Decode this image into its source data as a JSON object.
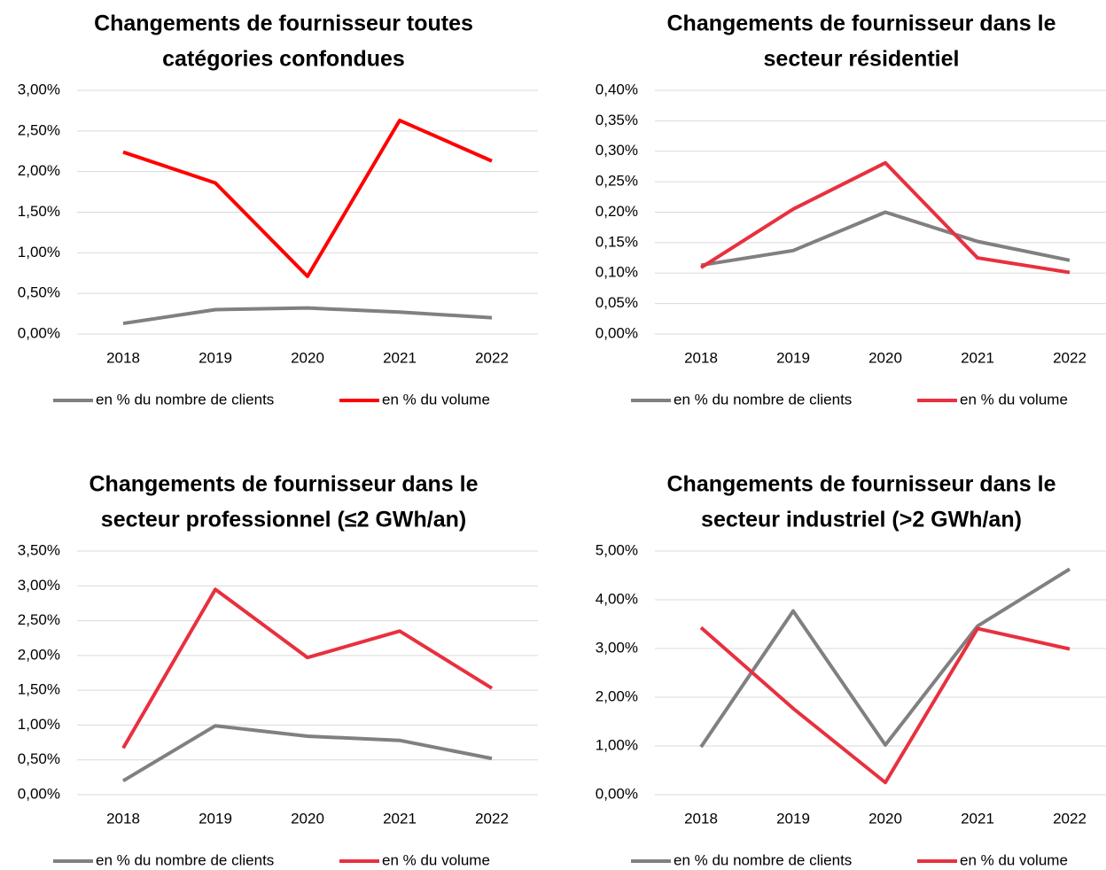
{
  "chart_data": [
    {
      "type": "line",
      "title": [
        "Changements de fournisseur toutes",
        "catégories confondues"
      ],
      "categories": [
        "2018",
        "2019",
        "2020",
        "2021",
        "2022"
      ],
      "series": [
        {
          "name": "en % du nombre de clients",
          "color": "#808080",
          "values": [
            0.13,
            0.3,
            0.32,
            0.27,
            0.2
          ]
        },
        {
          "name": "en % du volume",
          "color": "#ff0000",
          "values": [
            2.24,
            1.86,
            0.71,
            2.63,
            2.13
          ]
        }
      ],
      "ylim": [
        0,
        3
      ],
      "yticks": [
        {
          "value": 0,
          "label": "0,00%"
        },
        {
          "value": 0.5,
          "label": "0,50%"
        },
        {
          "value": 1,
          "label": "1,00%"
        },
        {
          "value": 1.5,
          "label": "1,50%"
        },
        {
          "value": 2,
          "label": "2,00%"
        },
        {
          "value": 2.5,
          "label": "2,50%"
        },
        {
          "value": 3,
          "label": "3,00%"
        }
      ],
      "grid": true,
      "legend": "bottom"
    },
    {
      "type": "line",
      "title": [
        "Changements de fournisseur dans le",
        "secteur résidentiel"
      ],
      "categories": [
        "2018",
        "2019",
        "2020",
        "2021",
        "2022"
      ],
      "series": [
        {
          "name": "en % du nombre de clients",
          "color": "#808080",
          "values": [
            0.113,
            0.137,
            0.2,
            0.152,
            0.121
          ]
        },
        {
          "name": "en % du volume",
          "color": "#e8303f",
          "values": [
            0.109,
            0.205,
            0.281,
            0.125,
            0.101
          ]
        }
      ],
      "ylim": [
        0,
        0.4
      ],
      "yticks": [
        {
          "value": 0,
          "label": "0,00%"
        },
        {
          "value": 0.05,
          "label": "0,05%"
        },
        {
          "value": 0.1,
          "label": "0,10%"
        },
        {
          "value": 0.15,
          "label": "0,15%"
        },
        {
          "value": 0.2,
          "label": "0,20%"
        },
        {
          "value": 0.25,
          "label": "0,25%"
        },
        {
          "value": 0.3,
          "label": "0,30%"
        },
        {
          "value": 0.35,
          "label": "0,35%"
        },
        {
          "value": 0.4,
          "label": "0,40%"
        }
      ],
      "grid": true,
      "legend": "bottom"
    },
    {
      "type": "line",
      "title": [
        "Changements de fournisseur dans le",
        "secteur professionnel (≤2 GWh/an)"
      ],
      "categories": [
        "2018",
        "2019",
        "2020",
        "2021",
        "2022"
      ],
      "series": [
        {
          "name": "en % du nombre de clients",
          "color": "#808080",
          "values": [
            0.2,
            0.99,
            0.84,
            0.78,
            0.52
          ]
        },
        {
          "name": "en % du volume",
          "color": "#e8303f",
          "values": [
            0.67,
            2.95,
            1.97,
            2.35,
            1.53
          ]
        }
      ],
      "ylim": [
        0,
        3.5
      ],
      "yticks": [
        {
          "value": 0,
          "label": "0,00%"
        },
        {
          "value": 0.5,
          "label": "0,50%"
        },
        {
          "value": 1,
          "label": "1,00%"
        },
        {
          "value": 1.5,
          "label": "1,50%"
        },
        {
          "value": 2,
          "label": "2,00%"
        },
        {
          "value": 2.5,
          "label": "2,50%"
        },
        {
          "value": 3,
          "label": "3,00%"
        },
        {
          "value": 3.5,
          "label": "3,50%"
        }
      ],
      "grid": true,
      "legend": "bottom"
    },
    {
      "type": "line",
      "title": [
        "Changements de fournisseur dans le",
        "secteur industriel (>2 GWh/an)"
      ],
      "categories": [
        "2018",
        "2019",
        "2020",
        "2021",
        "2022"
      ],
      "series": [
        {
          "name": "en % du nombre de clients",
          "color": "#808080",
          "values": [
            0.98,
            3.77,
            1.02,
            3.46,
            4.63
          ]
        },
        {
          "name": "en % du volume",
          "color": "#e8303f",
          "values": [
            3.43,
            1.77,
            0.25,
            3.41,
            2.99
          ]
        }
      ],
      "ylim": [
        0,
        5
      ],
      "yticks": [
        {
          "value": 0,
          "label": "0,00%"
        },
        {
          "value": 1,
          "label": "1,00%"
        },
        {
          "value": 2,
          "label": "2,00%"
        },
        {
          "value": 3,
          "label": "3,00%"
        },
        {
          "value": 4,
          "label": "4,00%"
        },
        {
          "value": 5,
          "label": "5,00%"
        }
      ],
      "grid": true,
      "legend": "bottom"
    }
  ]
}
